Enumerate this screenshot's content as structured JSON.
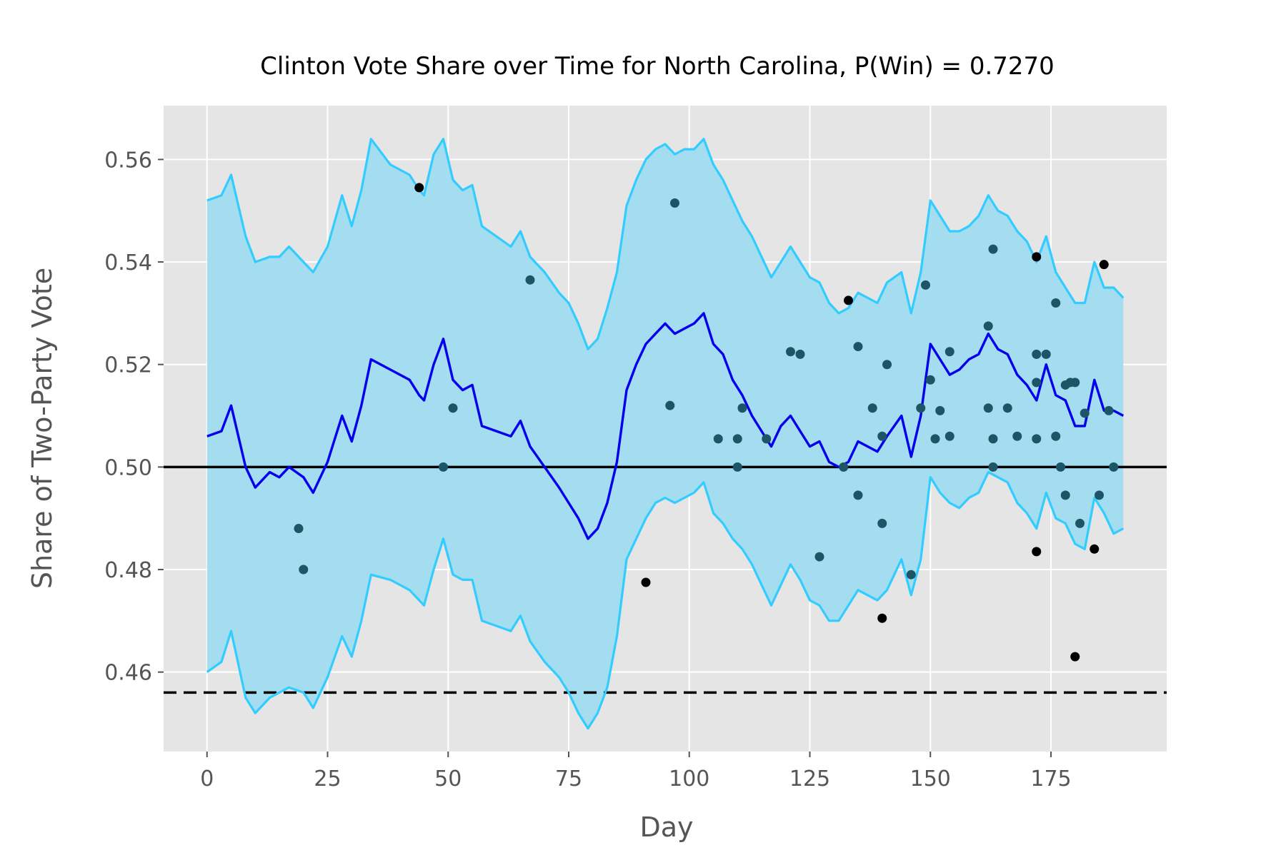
{
  "chart_data": {
    "type": "line",
    "title": "Clinton Vote Share over Time for North Carolina, P(Win) = 0.7270",
    "xlabel": "Day",
    "ylabel": "Share of Two-Party Vote",
    "xlim": [
      -9,
      199
    ],
    "ylim": [
      0.4445,
      0.5705
    ],
    "xticks": [
      0,
      25,
      50,
      75,
      100,
      125,
      150,
      175
    ],
    "xtick_labels": [
      "0",
      "25",
      "50",
      "75",
      "100",
      "125",
      "150",
      "175"
    ],
    "yticks": [
      0.46,
      0.48,
      0.5,
      0.52,
      0.54,
      0.56
    ],
    "ytick_labels": [
      "0.46",
      "0.48",
      "0.50",
      "0.52",
      "0.54",
      "0.56"
    ],
    "grid": true,
    "legend": "none",
    "hlines": [
      {
        "y": 0.5,
        "style": "solid",
        "color": "#000000"
      },
      {
        "y": 0.456,
        "style": "dashed",
        "color": "#000000"
      }
    ],
    "series": [
      {
        "role": "mean",
        "color": "#0000ee",
        "x": [
          0,
          3,
          5,
          8,
          10,
          13,
          15,
          17,
          20,
          22,
          25,
          28,
          30,
          32,
          34,
          38,
          42,
          44,
          45,
          47,
          49,
          51,
          53,
          55,
          57,
          60,
          63,
          65,
          67,
          70,
          73,
          75,
          77,
          79,
          81,
          83,
          85,
          87,
          89,
          91,
          93,
          95,
          97,
          99,
          101,
          103,
          105,
          107,
          109,
          111,
          113,
          115,
          117,
          119,
          121,
          123,
          125,
          127,
          129,
          131,
          133,
          135,
          137,
          139,
          141,
          144,
          146,
          148,
          150,
          152,
          154,
          156,
          158,
          160,
          162,
          164,
          166,
          168,
          170,
          172,
          174,
          176,
          178,
          180,
          182,
          184,
          186,
          188,
          190
        ],
        "y": [
          0.506,
          0.507,
          0.512,
          0.5,
          0.496,
          0.499,
          0.498,
          0.5,
          0.498,
          0.495,
          0.501,
          0.51,
          0.505,
          0.512,
          0.521,
          0.519,
          0.517,
          0.514,
          0.513,
          0.52,
          0.525,
          0.517,
          0.515,
          0.516,
          0.508,
          0.507,
          0.506,
          0.509,
          0.504,
          0.5,
          0.496,
          0.493,
          0.49,
          0.486,
          0.488,
          0.493,
          0.501,
          0.515,
          0.52,
          0.524,
          0.526,
          0.528,
          0.526,
          0.527,
          0.528,
          0.53,
          0.524,
          0.522,
          0.517,
          0.514,
          0.51,
          0.507,
          0.504,
          0.508,
          0.51,
          0.507,
          0.504,
          0.505,
          0.501,
          0.5,
          0.501,
          0.505,
          0.504,
          0.503,
          0.506,
          0.51,
          0.502,
          0.51,
          0.524,
          0.521,
          0.518,
          0.519,
          0.521,
          0.522,
          0.526,
          0.523,
          0.522,
          0.518,
          0.516,
          0.513,
          0.52,
          0.514,
          0.513,
          0.508,
          0.508,
          0.517,
          0.511,
          0.511,
          0.51
        ]
      },
      {
        "role": "upper",
        "color": "#33ccff",
        "x": [
          0,
          3,
          5,
          8,
          10,
          13,
          15,
          17,
          20,
          22,
          25,
          28,
          30,
          32,
          34,
          38,
          42,
          44,
          45,
          47,
          49,
          51,
          53,
          55,
          57,
          60,
          63,
          65,
          67,
          70,
          73,
          75,
          77,
          79,
          81,
          83,
          85,
          87,
          89,
          91,
          93,
          95,
          97,
          99,
          101,
          103,
          105,
          107,
          109,
          111,
          113,
          115,
          117,
          119,
          121,
          123,
          125,
          127,
          129,
          131,
          133,
          135,
          137,
          139,
          141,
          144,
          146,
          148,
          150,
          152,
          154,
          156,
          158,
          160,
          162,
          164,
          166,
          168,
          170,
          172,
          174,
          176,
          178,
          180,
          182,
          184,
          186,
          188,
          190
        ],
        "y": [
          0.552,
          0.553,
          0.557,
          0.545,
          0.54,
          0.541,
          0.541,
          0.543,
          0.54,
          0.538,
          0.543,
          0.553,
          0.547,
          0.554,
          0.564,
          0.559,
          0.557,
          0.554,
          0.553,
          0.561,
          0.564,
          0.556,
          0.554,
          0.555,
          0.547,
          0.545,
          0.543,
          0.546,
          0.541,
          0.538,
          0.534,
          0.532,
          0.528,
          0.523,
          0.525,
          0.531,
          0.538,
          0.551,
          0.556,
          0.56,
          0.562,
          0.563,
          0.561,
          0.562,
          0.562,
          0.564,
          0.559,
          0.556,
          0.552,
          0.548,
          0.545,
          0.541,
          0.537,
          0.54,
          0.543,
          0.54,
          0.537,
          0.536,
          0.532,
          0.53,
          0.531,
          0.534,
          0.533,
          0.532,
          0.536,
          0.538,
          0.53,
          0.538,
          0.552,
          0.549,
          0.546,
          0.546,
          0.547,
          0.549,
          0.553,
          0.55,
          0.549,
          0.546,
          0.544,
          0.54,
          0.545,
          0.538,
          0.535,
          0.532,
          0.532,
          0.54,
          0.535,
          0.535,
          0.533
        ]
      },
      {
        "role": "lower",
        "color": "#33ccff",
        "x": [
          0,
          3,
          5,
          8,
          10,
          13,
          15,
          17,
          20,
          22,
          25,
          28,
          30,
          32,
          34,
          38,
          42,
          44,
          45,
          47,
          49,
          51,
          53,
          55,
          57,
          60,
          63,
          65,
          67,
          70,
          73,
          75,
          77,
          79,
          81,
          83,
          85,
          87,
          89,
          91,
          93,
          95,
          97,
          99,
          101,
          103,
          105,
          107,
          109,
          111,
          113,
          115,
          117,
          119,
          121,
          123,
          125,
          127,
          129,
          131,
          133,
          135,
          137,
          139,
          141,
          144,
          146,
          148,
          150,
          152,
          154,
          156,
          158,
          160,
          162,
          164,
          166,
          168,
          170,
          172,
          174,
          176,
          178,
          180,
          182,
          184,
          186,
          188,
          190
        ],
        "y": [
          0.46,
          0.462,
          0.468,
          0.455,
          0.452,
          0.455,
          0.456,
          0.457,
          0.456,
          0.453,
          0.459,
          0.467,
          0.463,
          0.47,
          0.479,
          0.478,
          0.476,
          0.474,
          0.473,
          0.48,
          0.486,
          0.479,
          0.478,
          0.478,
          0.47,
          0.469,
          0.468,
          0.471,
          0.466,
          0.462,
          0.459,
          0.456,
          0.452,
          0.449,
          0.452,
          0.457,
          0.467,
          0.482,
          0.486,
          0.49,
          0.493,
          0.494,
          0.493,
          0.494,
          0.495,
          0.497,
          0.491,
          0.489,
          0.486,
          0.484,
          0.481,
          0.477,
          0.473,
          0.477,
          0.481,
          0.478,
          0.474,
          0.473,
          0.47,
          0.47,
          0.473,
          0.476,
          0.475,
          0.474,
          0.476,
          0.482,
          0.475,
          0.482,
          0.498,
          0.495,
          0.493,
          0.492,
          0.494,
          0.495,
          0.499,
          0.498,
          0.497,
          0.493,
          0.491,
          0.488,
          0.495,
          0.49,
          0.489,
          0.485,
          0.484,
          0.494,
          0.491,
          0.487,
          0.488
        ]
      }
    ],
    "band": {
      "color": "#9fdcef"
    },
    "scatter_points": [
      {
        "x": 19,
        "y": 0.488,
        "color": "#1d5566"
      },
      {
        "x": 20,
        "y": 0.48,
        "color": "#1d5566"
      },
      {
        "x": 44,
        "y": 0.5545,
        "color": "#000000"
      },
      {
        "x": 49,
        "y": 0.5,
        "color": "#1d5566"
      },
      {
        "x": 51,
        "y": 0.5115,
        "color": "#1d5566"
      },
      {
        "x": 67,
        "y": 0.5365,
        "color": "#1d5566"
      },
      {
        "x": 91,
        "y": 0.4775,
        "color": "#000000"
      },
      {
        "x": 96,
        "y": 0.512,
        "color": "#1d5566"
      },
      {
        "x": 97,
        "y": 0.5515,
        "color": "#1d5566"
      },
      {
        "x": 106,
        "y": 0.5055,
        "color": "#1d5566"
      },
      {
        "x": 110,
        "y": 0.5055,
        "color": "#1d5566"
      },
      {
        "x": 110,
        "y": 0.5,
        "color": "#1d5566"
      },
      {
        "x": 111,
        "y": 0.5115,
        "color": "#1d5566"
      },
      {
        "x": 116,
        "y": 0.5055,
        "color": "#1d5566"
      },
      {
        "x": 121,
        "y": 0.5225,
        "color": "#1d5566"
      },
      {
        "x": 123,
        "y": 0.522,
        "color": "#1d5566"
      },
      {
        "x": 127,
        "y": 0.4825,
        "color": "#1d5566"
      },
      {
        "x": 132,
        "y": 0.5,
        "color": "#1d5566"
      },
      {
        "x": 133,
        "y": 0.5325,
        "color": "#000000"
      },
      {
        "x": 135,
        "y": 0.5235,
        "color": "#1d5566"
      },
      {
        "x": 135,
        "y": 0.4945,
        "color": "#1d5566"
      },
      {
        "x": 138,
        "y": 0.5115,
        "color": "#1d5566"
      },
      {
        "x": 140,
        "y": 0.506,
        "color": "#1d5566"
      },
      {
        "x": 140,
        "y": 0.489,
        "color": "#1d5566"
      },
      {
        "x": 140,
        "y": 0.4705,
        "color": "#000000"
      },
      {
        "x": 141,
        "y": 0.52,
        "color": "#1d5566"
      },
      {
        "x": 146,
        "y": 0.479,
        "color": "#1d5566"
      },
      {
        "x": 148,
        "y": 0.5115,
        "color": "#1d5566"
      },
      {
        "x": 149,
        "y": 0.5355,
        "color": "#1d5566"
      },
      {
        "x": 150,
        "y": 0.517,
        "color": "#1d5566"
      },
      {
        "x": 151,
        "y": 0.5055,
        "color": "#1d5566"
      },
      {
        "x": 152,
        "y": 0.511,
        "color": "#1d5566"
      },
      {
        "x": 154,
        "y": 0.5225,
        "color": "#1d5566"
      },
      {
        "x": 154,
        "y": 0.506,
        "color": "#1d5566"
      },
      {
        "x": 162,
        "y": 0.5275,
        "color": "#1d5566"
      },
      {
        "x": 162,
        "y": 0.5115,
        "color": "#1d5566"
      },
      {
        "x": 163,
        "y": 0.5425,
        "color": "#1d5566"
      },
      {
        "x": 163,
        "y": 0.5055,
        "color": "#1d5566"
      },
      {
        "x": 163,
        "y": 0.5,
        "color": "#1d5566"
      },
      {
        "x": 166,
        "y": 0.5115,
        "color": "#1d5566"
      },
      {
        "x": 168,
        "y": 0.506,
        "color": "#1d5566"
      },
      {
        "x": 172,
        "y": 0.541,
        "color": "#000000"
      },
      {
        "x": 172,
        "y": 0.522,
        "color": "#1d5566"
      },
      {
        "x": 172,
        "y": 0.5165,
        "color": "#1d5566"
      },
      {
        "x": 172,
        "y": 0.5055,
        "color": "#1d5566"
      },
      {
        "x": 172,
        "y": 0.4835,
        "color": "#000000"
      },
      {
        "x": 174,
        "y": 0.522,
        "color": "#1d5566"
      },
      {
        "x": 176,
        "y": 0.532,
        "color": "#1d5566"
      },
      {
        "x": 176,
        "y": 0.506,
        "color": "#1d5566"
      },
      {
        "x": 177,
        "y": 0.5,
        "color": "#1d5566"
      },
      {
        "x": 178,
        "y": 0.516,
        "color": "#1d5566"
      },
      {
        "x": 178,
        "y": 0.4945,
        "color": "#1d5566"
      },
      {
        "x": 179,
        "y": 0.5165,
        "color": "#1d5566"
      },
      {
        "x": 180,
        "y": 0.5165,
        "color": "#1d5566"
      },
      {
        "x": 180,
        "y": 0.463,
        "color": "#000000"
      },
      {
        "x": 181,
        "y": 0.489,
        "color": "#1d5566"
      },
      {
        "x": 182,
        "y": 0.5105,
        "color": "#1d5566"
      },
      {
        "x": 184,
        "y": 0.484,
        "color": "#000000"
      },
      {
        "x": 185,
        "y": 0.4945,
        "color": "#1d5566"
      },
      {
        "x": 186,
        "y": 0.5395,
        "color": "#000000"
      },
      {
        "x": 187,
        "y": 0.511,
        "color": "#1d5566"
      },
      {
        "x": 188,
        "y": 0.5,
        "color": "#1d5566"
      }
    ]
  }
}
